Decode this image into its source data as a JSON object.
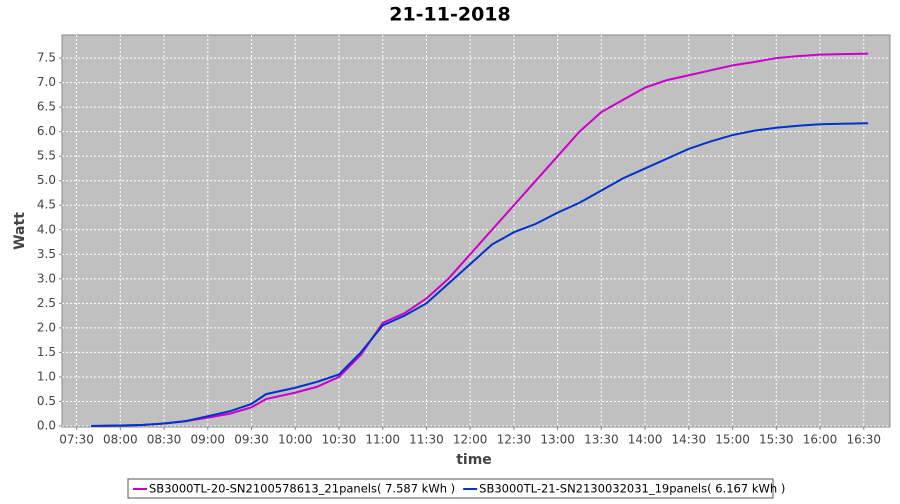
{
  "chart_data": {
    "type": "line",
    "title": "21-11-2018",
    "x_label": "time",
    "y_label": "Watt",
    "x": [
      "07:40",
      "08:00",
      "08:15",
      "08:30",
      "08:45",
      "09:00",
      "09:15",
      "09:30",
      "09:40",
      "10:00",
      "10:15",
      "10:30",
      "10:45",
      "11:00",
      "11:15",
      "11:30",
      "11:45",
      "12:00",
      "12:15",
      "12:30",
      "12:45",
      "13:00",
      "13:15",
      "13:30",
      "13:45",
      "14:00",
      "14:15",
      "14:30",
      "14:45",
      "15:00",
      "15:15",
      "15:30",
      "15:45",
      "16:00",
      "16:15",
      "16:33"
    ],
    "series": [
      {
        "name": "SB3000TL-20-SN2100578613_21panels( 7.587 kWh )",
        "color": "#cc00cc",
        "values": [
          0,
          0.01,
          0.02,
          0.05,
          0.1,
          0.17,
          0.25,
          0.38,
          0.55,
          0.68,
          0.8,
          1.0,
          1.45,
          2.1,
          2.3,
          2.6,
          3.0,
          3.5,
          4.0,
          4.5,
          5.0,
          5.5,
          6.0,
          6.4,
          6.65,
          6.9,
          7.05,
          7.15,
          7.25,
          7.35,
          7.42,
          7.5,
          7.54,
          7.57,
          7.58,
          7.59
        ]
      },
      {
        "name": "SB3000TL-21-SN2130032031_19panels( 6.167 kWh )",
        "color": "#0033cc",
        "values": [
          0,
          0.01,
          0.02,
          0.05,
          0.1,
          0.2,
          0.3,
          0.45,
          0.65,
          0.78,
          0.9,
          1.05,
          1.5,
          2.05,
          2.25,
          2.5,
          2.9,
          3.3,
          3.7,
          3.95,
          4.12,
          4.35,
          4.55,
          4.8,
          5.05,
          5.25,
          5.45,
          5.65,
          5.8,
          5.93,
          6.02,
          6.08,
          6.12,
          6.15,
          6.16,
          6.17
        ]
      }
    ],
    "xlim": [
      "07:20",
      "16:48"
    ],
    "xticks": [
      "07:30",
      "08:00",
      "08:30",
      "09:00",
      "09:30",
      "10:00",
      "10:30",
      "11:00",
      "11:30",
      "12:00",
      "12:30",
      "13:00",
      "13:30",
      "14:00",
      "14:30",
      "15:00",
      "15:30",
      "16:00",
      "16:30"
    ],
    "ylim": [
      0,
      7.97
    ],
    "yticks": [
      {
        "value": 0,
        "label": "0.0"
      },
      0.5,
      {
        "value": 1,
        "label": "1.0"
      },
      1.5,
      {
        "value": 2,
        "label": "2.0"
      },
      2.5,
      {
        "value": 3,
        "label": "3.0"
      },
      3.5,
      {
        "value": 4,
        "label": "4.0"
      },
      4.5,
      {
        "value": 5,
        "label": "5.0"
      },
      5.5,
      {
        "value": 6,
        "label": "6.0"
      },
      6.5,
      {
        "value": 7,
        "label": "7.0"
      },
      7.5
    ],
    "grid": true
  }
}
